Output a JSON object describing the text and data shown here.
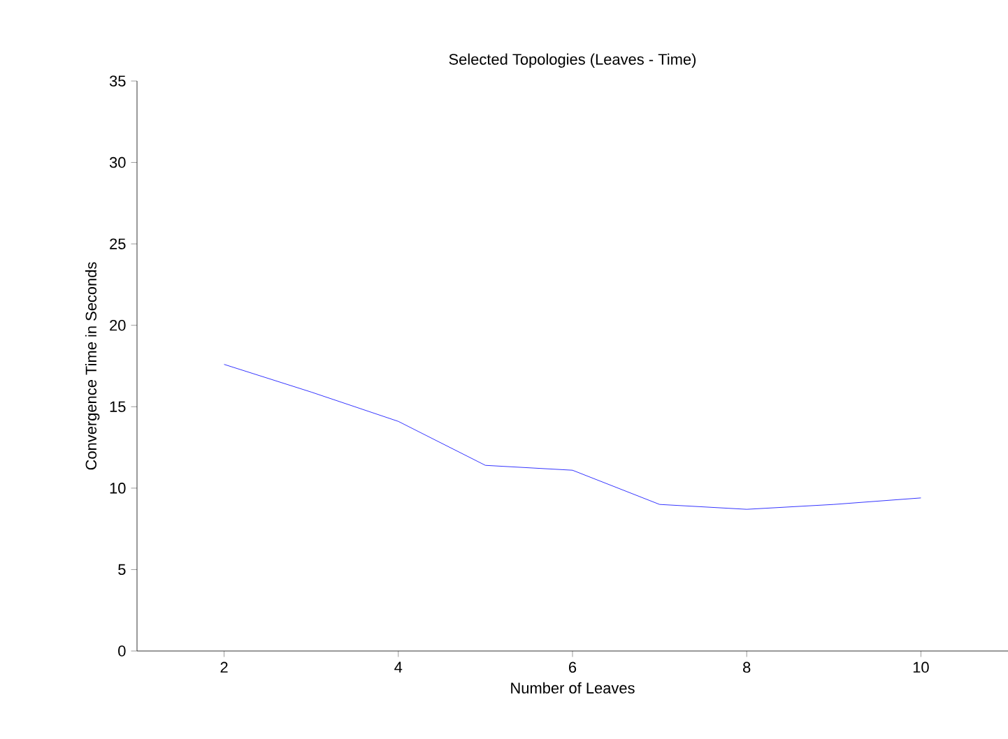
{
  "chart_data": {
    "type": "line",
    "title": "Selected Topologies (Leaves - Time)",
    "xlabel": "Number of Leaves",
    "ylabel": "Convergence Time in Seconds",
    "x": [
      2,
      3,
      4,
      5,
      6,
      7,
      8,
      9,
      10
    ],
    "series": [
      {
        "color": "#0000ff",
        "values": [
          17.6,
          15.9,
          14.1,
          11.4,
          11.1,
          9.0,
          8.7,
          9.0,
          9.4
        ]
      }
    ],
    "xlim": [
      1,
      11
    ],
    "ylim": [
      0,
      35
    ],
    "xticks": [
      2,
      4,
      6,
      8,
      10
    ],
    "yticks": [
      0,
      5,
      10,
      15,
      20,
      25,
      30,
      35
    ],
    "grid": false,
    "marker": "none",
    "line_style": "solid"
  }
}
